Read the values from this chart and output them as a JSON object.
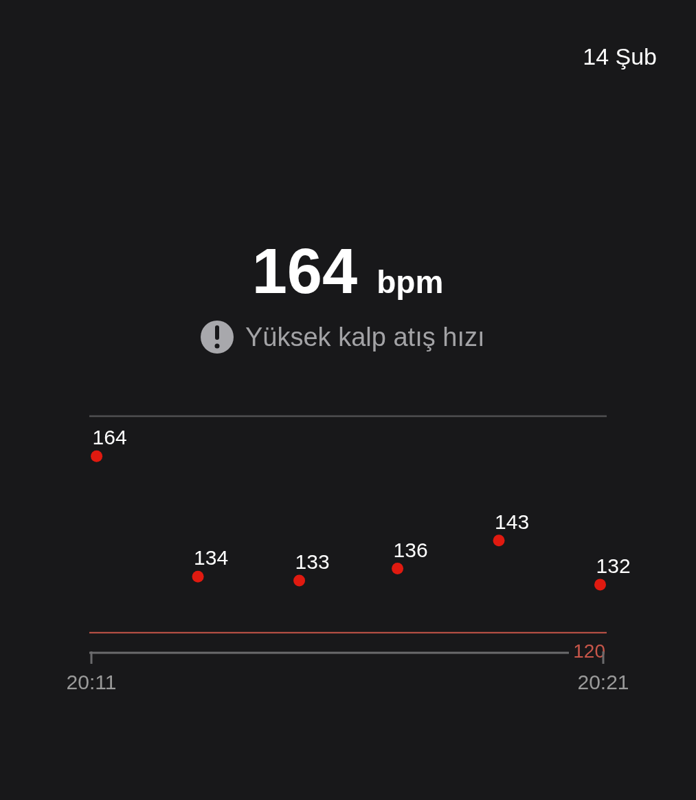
{
  "chart_data": {
    "type": "scatter",
    "title": "164 bpm",
    "subtitle": "Yüksek kalp atış hızı",
    "annotations": [
      "14 Şub"
    ],
    "x": [
      20.185,
      20.218,
      20.251,
      20.283,
      20.316,
      20.349
    ],
    "series": [
      {
        "color": "#e01a10",
        "values": [
          164,
          134,
          133,
          136,
          143,
          132
        ]
      }
    ],
    "data_labels": true,
    "marker": "circle",
    "xlim": [
      20.1833,
      20.35
    ],
    "xticks": [
      {
        "value": 20.1833,
        "label": "20:11"
      },
      {
        "value": 20.35,
        "label": "20:21"
      }
    ],
    "ylim": [
      115,
      174
    ],
    "tick_labels": "x",
    "ref_lines": [
      {
        "axis": "y",
        "value": 120,
        "label": "120",
        "color": "#c8564a"
      }
    ]
  }
}
